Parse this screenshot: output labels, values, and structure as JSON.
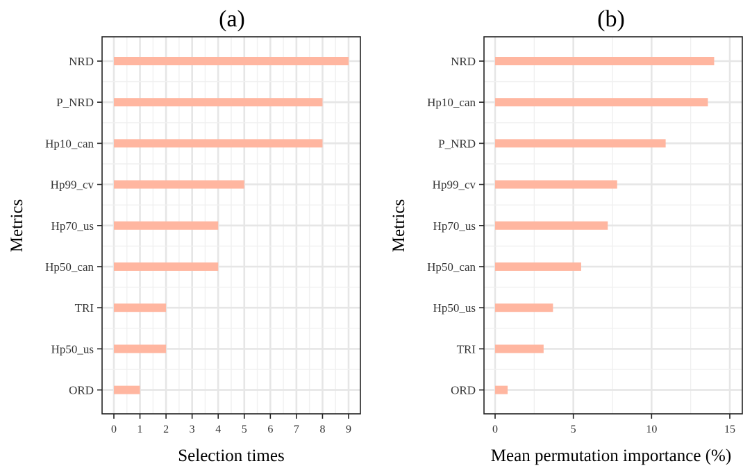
{
  "chart_data": [
    {
      "type": "bar",
      "orientation": "horizontal",
      "title": "(a)",
      "xlabel": "Selection times",
      "ylabel": "Metrics",
      "xlim": [
        0,
        9
      ],
      "xticks": [
        0,
        1,
        2,
        3,
        4,
        5,
        6,
        7,
        8,
        9
      ],
      "grid": true,
      "bar_color": "#ffb6a0",
      "categories": [
        "NRD",
        "P_NRD",
        "Hp10_can",
        "Hp99_cv",
        "Hp70_us",
        "Hp50_can",
        "TRI",
        "Hp50_us",
        "ORD"
      ],
      "values": [
        9,
        8,
        8,
        5,
        4,
        4,
        2,
        2,
        1
      ]
    },
    {
      "type": "bar",
      "orientation": "horizontal",
      "title": "(b)",
      "xlabel": "Mean permutation importance (%)",
      "ylabel": "Metrics",
      "xlim": [
        0,
        15
      ],
      "xticks": [
        0,
        5,
        10,
        15
      ],
      "grid": true,
      "bar_color": "#ffb6a0",
      "categories": [
        "NRD",
        "Hp10_can",
        "P_NRD",
        "Hp99_cv",
        "Hp70_us",
        "Hp50_can",
        "Hp50_us",
        "TRI",
        "ORD"
      ],
      "values": [
        14.0,
        13.6,
        10.9,
        7.8,
        7.2,
        5.5,
        3.7,
        3.1,
        0.8
      ]
    }
  ]
}
